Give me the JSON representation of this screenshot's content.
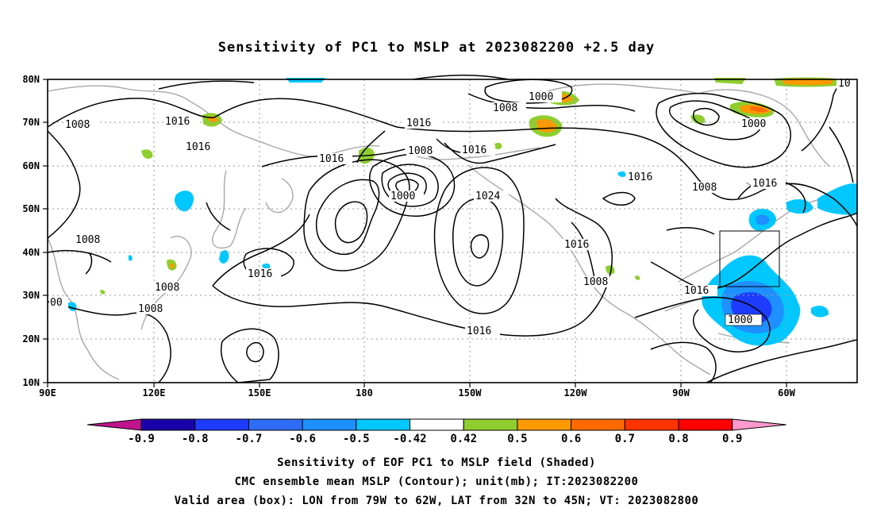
{
  "title": "Sensitivity of PC1 to MSLP at 2023082200 +2.5 day",
  "map": {
    "lon_labels": [
      "90E",
      "120E",
      "150E",
      "180",
      "150W",
      "120W",
      "90W",
      "60W"
    ],
    "lat_labels": [
      "10N",
      "20N",
      "30N",
      "40N",
      "50N",
      "60N",
      "70N",
      "80N"
    ],
    "valid_box": {
      "lon": [
        -79,
        -62
      ],
      "lat": [
        32,
        45
      ]
    },
    "contour_labels": [
      "1008",
      "1016",
      "1016",
      "1016",
      "1008",
      "1008",
      "1000",
      "1016",
      "1000",
      "1024",
      "1008",
      "1016",
      "1016",
      "1008",
      "1016",
      "1008",
      "1000",
      "1016",
      "1008",
      "1016",
      "00",
      "1016",
      "1008",
      "10",
      "1016"
    ]
  },
  "colorbar": {
    "labels": [
      "-0.9",
      "-0.8",
      "-0.7",
      "-0.6",
      "-0.5",
      "-0.42",
      "0.42",
      "0.5",
      "0.6",
      "0.7",
      "0.8",
      "0.9"
    ],
    "colors": [
      "#1a00a8",
      "#1e3cff",
      "#2f6cf5",
      "#1e90ff",
      "#00c8ff",
      "#ffffff",
      "#8fce2e",
      "#ff9900",
      "#ff6a00",
      "#ff3300",
      "#ff0000"
    ],
    "low_end_color": "#c0148c",
    "high_end_color": "#ff99cc"
  },
  "captions": [
    "Sensitivity of EOF PC1 to MSLP field (Shaded)",
    "CMC ensemble mean MSLP (Contour); unit(mb); IT:2023082200",
    "Valid area (box): LON from 79W to 62W, LAT from 32N to 45N; VT: 2023082800"
  ]
}
